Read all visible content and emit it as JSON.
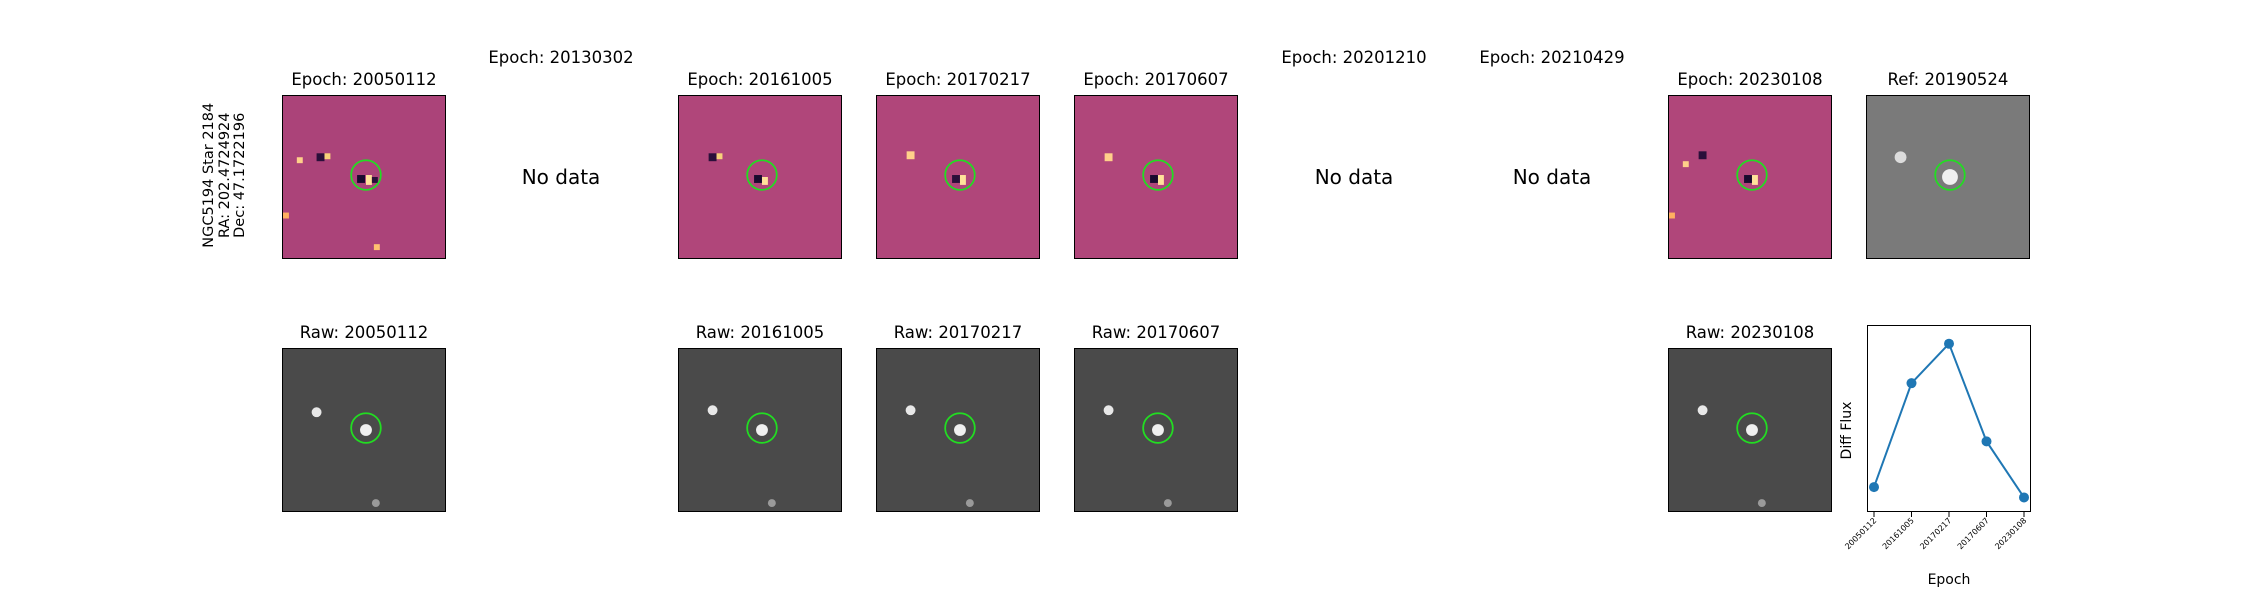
{
  "star": {
    "line1": "NGC5194 Star 2184",
    "line2": "RA: 202.4724924",
    "line3": "Dec: 47.1722196"
  },
  "epochs": [
    {
      "title": "Epoch: 20050112",
      "has_data": true
    },
    {
      "title": "Epoch: 20130302",
      "has_data": false,
      "no_data_text": "No data"
    },
    {
      "title": "Epoch: 20161005",
      "has_data": true
    },
    {
      "title": "Epoch: 20170217",
      "has_data": true
    },
    {
      "title": "Epoch: 20170607",
      "has_data": true
    },
    {
      "title": "Epoch: 20201210",
      "has_data": false,
      "no_data_text": "No data"
    },
    {
      "title": "Epoch: 20210429",
      "has_data": false,
      "no_data_text": "No data"
    },
    {
      "title": "Epoch: 20230108",
      "has_data": true
    }
  ],
  "reference": {
    "title": "Ref: 20190524"
  },
  "raw": [
    {
      "title": "Raw: 20050112"
    },
    {
      "title": "Raw: 20161005"
    },
    {
      "title": "Raw: 20170217"
    },
    {
      "title": "Raw: 20170607"
    },
    {
      "title": "Raw: 20230108"
    }
  ],
  "colors": {
    "diff_background": "#b0467a",
    "raw_background": "#4a4a4a",
    "ref_background": "#7a7a7a",
    "marker_circle": "#22dd22",
    "series_line": "#1f77b4"
  },
  "chart_data": {
    "type": "line",
    "title": "",
    "xlabel": "Epoch",
    "ylabel": "Diff Flux",
    "categories": [
      "20050112",
      "20161005",
      "20170217",
      "20170607",
      "20230108"
    ],
    "series": [
      {
        "name": "Diff Flux",
        "values": [
          0.12,
          0.62,
          0.81,
          0.34,
          0.07
        ]
      }
    ],
    "ylim": [
      0.0,
      0.9
    ],
    "yticks_shown": false
  }
}
